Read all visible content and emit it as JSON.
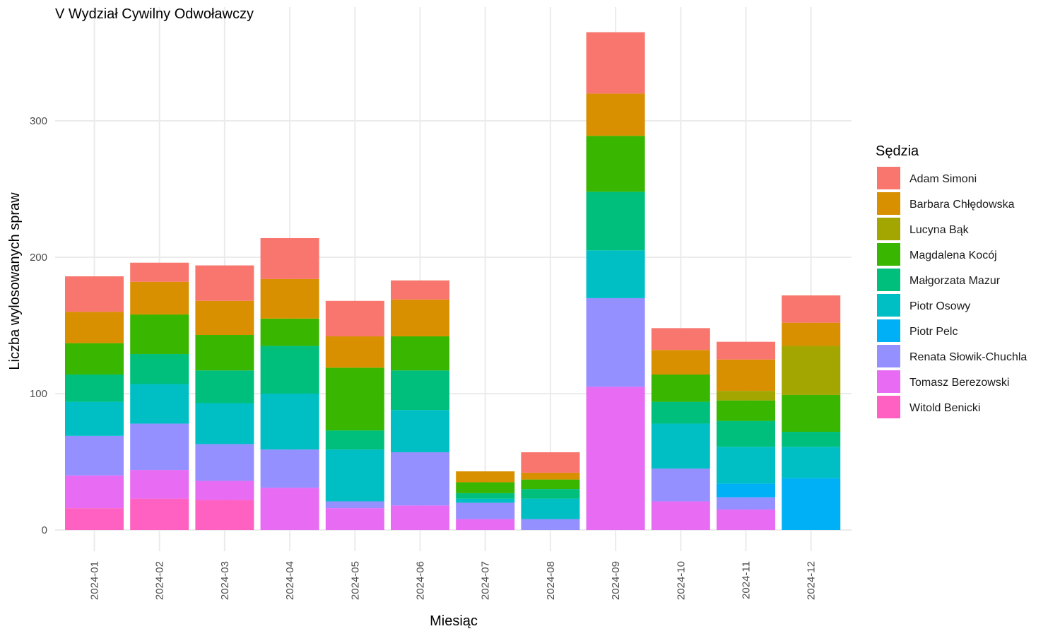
{
  "chart_data": {
    "type": "bar",
    "stacked": true,
    "title": "V Wydział Cywilny Odwoławczy",
    "xlabel": "Miesiąc",
    "ylabel": "Liczba wylosowanych spraw",
    "ylim": [
      0,
      375
    ],
    "yticks": [
      0,
      100,
      200,
      300
    ],
    "grid": true,
    "legend_title": "Sędzia",
    "legend_position": "right",
    "categories": [
      "2024-01",
      "2024-02",
      "2024-03",
      "2024-04",
      "2024-05",
      "2024-06",
      "2024-07",
      "2024-08",
      "2024-09",
      "2024-10",
      "2024-11",
      "2024-12"
    ],
    "series": [
      {
        "name": "Witold Benicki",
        "color": "#FF61C3",
        "values": [
          16,
          23,
          22,
          0,
          0,
          0,
          0,
          0,
          0,
          0,
          0,
          0
        ]
      },
      {
        "name": "Tomasz Berezowski",
        "color": "#E76BF3",
        "values": [
          24,
          21,
          14,
          31,
          16,
          18,
          8,
          0,
          105,
          21,
          15,
          0
        ]
      },
      {
        "name": "Renata Słowik-Chuchla",
        "color": "#9590FF",
        "values": [
          29,
          34,
          27,
          28,
          5,
          39,
          12,
          8,
          65,
          24,
          9,
          0
        ]
      },
      {
        "name": "Piotr Pelc",
        "color": "#00B0F6",
        "values": [
          0,
          0,
          0,
          0,
          0,
          0,
          0,
          0,
          0,
          0,
          10,
          38
        ]
      },
      {
        "name": "Piotr Osowy",
        "color": "#00BFC4",
        "values": [
          25,
          29,
          30,
          41,
          38,
          31,
          3,
          15,
          35,
          33,
          27,
          23
        ]
      },
      {
        "name": "Małgorzata Mazur",
        "color": "#00BF7D",
        "values": [
          20,
          22,
          24,
          35,
          14,
          29,
          4,
          7,
          43,
          16,
          19,
          11
        ]
      },
      {
        "name": "Magdalena Kocój",
        "color": "#39B600",
        "values": [
          23,
          29,
          26,
          20,
          46,
          25,
          8,
          7,
          41,
          20,
          15,
          27
        ]
      },
      {
        "name": "Lucyna Bąk",
        "color": "#A3A500",
        "values": [
          0,
          0,
          0,
          0,
          0,
          0,
          0,
          0,
          0,
          0,
          7,
          36
        ]
      },
      {
        "name": "Barbara Chłędowska",
        "color": "#D89000",
        "values": [
          23,
          24,
          25,
          29,
          23,
          27,
          8,
          5,
          31,
          18,
          23,
          17
        ]
      },
      {
        "name": "Adam Simoni",
        "color": "#F8766D",
        "values": [
          26,
          14,
          26,
          30,
          26,
          14,
          0,
          15,
          45,
          16,
          13,
          20
        ]
      }
    ],
    "legend_order": [
      "Adam Simoni",
      "Barbara Chłędowska",
      "Lucyna Bąk",
      "Magdalena Kocój",
      "Małgorzata Mazur",
      "Piotr Osowy",
      "Piotr Pelc",
      "Renata Słowik-Chuchla",
      "Tomasz Berezowski",
      "Witold Benicki"
    ]
  }
}
